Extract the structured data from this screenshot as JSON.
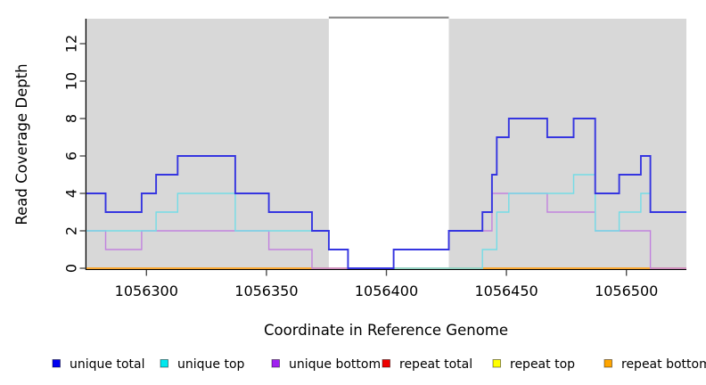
{
  "chart_data": {
    "type": "line",
    "subtype": "step",
    "title": "",
    "xlabel": "Coordinate in Reference Genome",
    "ylabel": "Read Coverage Depth",
    "xlim": [
      1056275,
      1056525
    ],
    "ylim": [
      0,
      13.4
    ],
    "x_ticks": [
      1056300,
      1056350,
      1056400,
      1056450,
      1056500
    ],
    "y_ticks": [
      0,
      2,
      4,
      6,
      8,
      10,
      12
    ],
    "grid": false,
    "legend_position": "bottom",
    "plot_bg_color": "#D8D8D8",
    "axis_color": "#000000",
    "highlight_band": {
      "x_start": 1056376,
      "x_end": 1056426,
      "fill": "#FFFFFF",
      "top_border_color": "#8A8A8A"
    },
    "x_end": 1056525,
    "series": [
      {
        "name": "repeat total",
        "legend_color": "#EE0000",
        "line_color": "#E03030",
        "line_width": 1.3,
        "steps": [
          [
            1056275,
            0
          ]
        ]
      },
      {
        "name": "repeat top",
        "legend_color": "#FFFF00",
        "line_color": "#F5E520",
        "line_width": 1.3,
        "steps": [
          [
            1056275,
            0
          ]
        ]
      },
      {
        "name": "repeat bottom",
        "legend_color": "#FFA500",
        "line_color": "#FFA014",
        "line_width": 1.6,
        "steps": [
          [
            1056275,
            0
          ]
        ]
      },
      {
        "name": "unique bottom",
        "legend_color": "#A020F0",
        "line_color": "#C182DE",
        "line_width": 1.4,
        "steps": [
          [
            1056275,
            2
          ],
          [
            1056283,
            1
          ],
          [
            1056298,
            2
          ],
          [
            1056351,
            1
          ],
          [
            1056369,
            0
          ],
          [
            1056403,
            1
          ],
          [
            1056426,
            2
          ],
          [
            1056444,
            4
          ],
          [
            1056467,
            3
          ],
          [
            1056487,
            2
          ],
          [
            1056510,
            0
          ]
        ]
      },
      {
        "name": "unique top",
        "legend_color": "#00E8EE",
        "line_color": "#74DCE6",
        "line_width": 1.4,
        "steps": [
          [
            1056275,
            2
          ],
          [
            1056304,
            3
          ],
          [
            1056313,
            4
          ],
          [
            1056337,
            2
          ],
          [
            1056376,
            1
          ],
          [
            1056384,
            0
          ],
          [
            1056440,
            1
          ],
          [
            1056446,
            3
          ],
          [
            1056451,
            4
          ],
          [
            1056478,
            5
          ],
          [
            1056487,
            2
          ],
          [
            1056497,
            3
          ],
          [
            1056506,
            4
          ],
          [
            1056510,
            3
          ]
        ]
      },
      {
        "name": "unique total",
        "legend_color": "#0000F0",
        "line_color": "#3535E0",
        "line_width": 1.9,
        "steps": [
          [
            1056275,
            4
          ],
          [
            1056283,
            3
          ],
          [
            1056298,
            4
          ],
          [
            1056304,
            5
          ],
          [
            1056313,
            6
          ],
          [
            1056337,
            4
          ],
          [
            1056351,
            3
          ],
          [
            1056369,
            2
          ],
          [
            1056376,
            1
          ],
          [
            1056384,
            0
          ],
          [
            1056403,
            1
          ],
          [
            1056426,
            2
          ],
          [
            1056440,
            3
          ],
          [
            1056444,
            5
          ],
          [
            1056446,
            7
          ],
          [
            1056451,
            8
          ],
          [
            1056467,
            7
          ],
          [
            1056478,
            8
          ],
          [
            1056487,
            4
          ],
          [
            1056497,
            5
          ],
          [
            1056506,
            6
          ],
          [
            1056510,
            3
          ]
        ]
      }
    ],
    "legend_display_order": [
      5,
      4,
      3,
      0,
      1,
      2
    ]
  }
}
